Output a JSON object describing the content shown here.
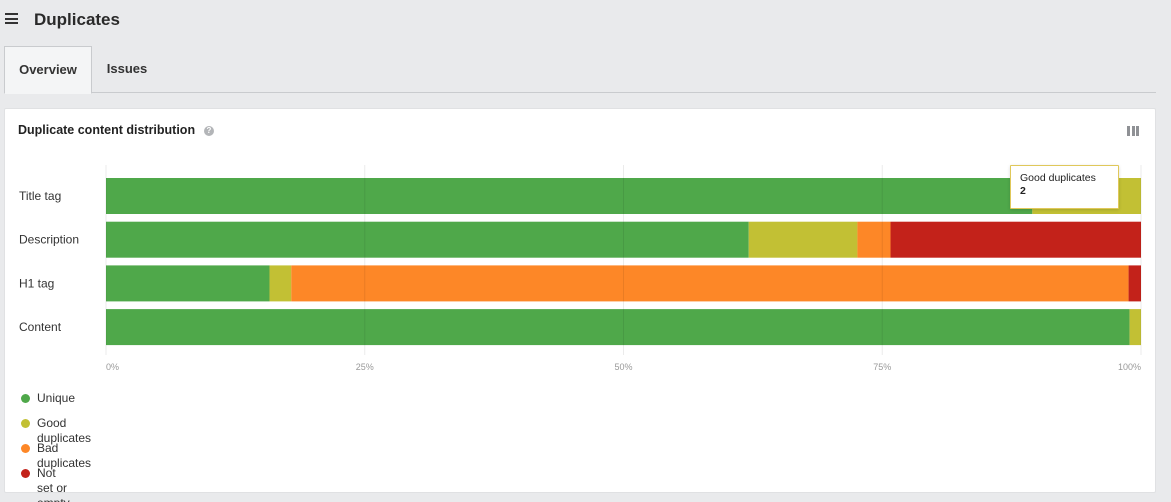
{
  "header": {
    "title": "Duplicates",
    "menu_icon": "hamburger-menu-icon"
  },
  "tabs": [
    {
      "label": "Overview",
      "active": true
    },
    {
      "label": "Issues",
      "active": false
    }
  ],
  "card": {
    "title": "Duplicate content distribution",
    "help_icon": "question-circle-icon",
    "help_glyph": "?",
    "columns_icon": "columns-icon"
  },
  "tooltip": {
    "label": "Good duplicates",
    "value": "2"
  },
  "chart_data": {
    "type": "bar",
    "orientation": "horizontal",
    "stacked": true,
    "normalized": true,
    "categories": [
      "Title tag",
      "Description",
      "H1 tag",
      "Content"
    ],
    "series": [
      {
        "name": "Unique",
        "color": "#4fa84a",
        "values": [
          89.5,
          62.1,
          15.8,
          98.9
        ]
      },
      {
        "name": "Good duplicates",
        "color": "#c2c034",
        "values": [
          10.5,
          10.5,
          2.1,
          1.1
        ]
      },
      {
        "name": "Bad duplicates",
        "color": "#fd8727",
        "values": [
          0,
          3.2,
          80.9,
          0
        ]
      },
      {
        "name": "Not set or empty",
        "color": "#c3221a",
        "values": [
          0,
          24.2,
          1.2,
          0
        ]
      }
    ],
    "xlim": [
      0,
      100
    ],
    "x_ticks": [
      "0%",
      "25%",
      "50%",
      "75%",
      "100%"
    ],
    "grid": true,
    "legend_position": "bottom-left"
  }
}
